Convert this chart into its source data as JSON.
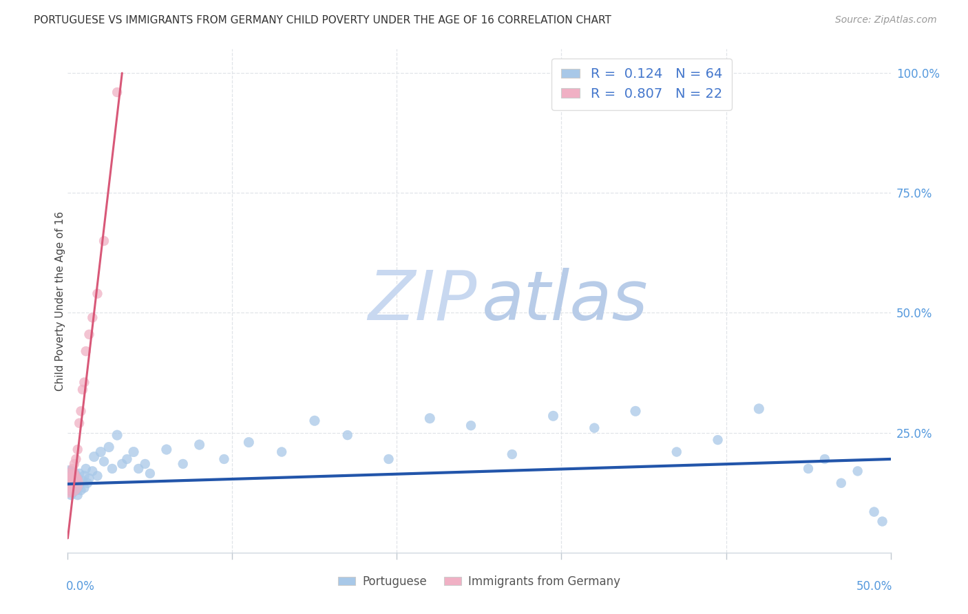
{
  "title": "PORTUGUESE VS IMMIGRANTS FROM GERMANY CHILD POVERTY UNDER THE AGE OF 16 CORRELATION CHART",
  "source": "Source: ZipAtlas.com",
  "ylabel": "Child Poverty Under the Age of 16",
  "legend_label_blue": "Portuguese",
  "legend_label_pink": "Immigrants from Germany",
  "R_blue": 0.124,
  "N_blue": 64,
  "R_pink": 0.807,
  "N_pink": 22,
  "blue_color": "#a8c8e8",
  "pink_color": "#f0b0c4",
  "blue_line_color": "#2255aa",
  "pink_line_color": "#d85878",
  "watermark_zip_color": "#c8d8f0",
  "watermark_atlas_color": "#b8cce8",
  "blue_points_x": [
    0.0005,
    0.001,
    0.001,
    0.0015,
    0.002,
    0.002,
    0.0025,
    0.003,
    0.003,
    0.003,
    0.004,
    0.004,
    0.005,
    0.005,
    0.005,
    0.006,
    0.006,
    0.007,
    0.007,
    0.008,
    0.009,
    0.01,
    0.01,
    0.011,
    0.012,
    0.013,
    0.015,
    0.016,
    0.018,
    0.02,
    0.022,
    0.025,
    0.027,
    0.03,
    0.033,
    0.036,
    0.04,
    0.043,
    0.047,
    0.05,
    0.06,
    0.07,
    0.08,
    0.095,
    0.11,
    0.13,
    0.15,
    0.17,
    0.195,
    0.22,
    0.245,
    0.27,
    0.295,
    0.32,
    0.345,
    0.37,
    0.395,
    0.42,
    0.45,
    0.46,
    0.47,
    0.48,
    0.49,
    0.495
  ],
  "blue_points_y": [
    0.155,
    0.145,
    0.13,
    0.16,
    0.12,
    0.17,
    0.14,
    0.15,
    0.125,
    0.165,
    0.135,
    0.155,
    0.13,
    0.16,
    0.145,
    0.12,
    0.155,
    0.14,
    0.165,
    0.13,
    0.15,
    0.16,
    0.135,
    0.175,
    0.145,
    0.155,
    0.17,
    0.2,
    0.16,
    0.21,
    0.19,
    0.22,
    0.175,
    0.245,
    0.185,
    0.195,
    0.21,
    0.175,
    0.185,
    0.165,
    0.215,
    0.185,
    0.225,
    0.195,
    0.23,
    0.21,
    0.275,
    0.245,
    0.195,
    0.28,
    0.265,
    0.205,
    0.285,
    0.26,
    0.295,
    0.21,
    0.235,
    0.3,
    0.175,
    0.195,
    0.145,
    0.17,
    0.085,
    0.065
  ],
  "blue_sizes": [
    700,
    120,
    100,
    100,
    100,
    100,
    100,
    110,
    100,
    100,
    100,
    100,
    110,
    100,
    100,
    100,
    100,
    100,
    100,
    100,
    100,
    110,
    100,
    100,
    100,
    100,
    100,
    110,
    100,
    110,
    100,
    110,
    100,
    110,
    100,
    100,
    110,
    100,
    100,
    100,
    110,
    100,
    110,
    100,
    110,
    100,
    110,
    100,
    100,
    110,
    100,
    100,
    110,
    100,
    110,
    100,
    100,
    110,
    100,
    100,
    100,
    100,
    100,
    100
  ],
  "pink_points_x": [
    0.0005,
    0.001,
    0.0015,
    0.002,
    0.002,
    0.003,
    0.003,
    0.004,
    0.004,
    0.005,
    0.005,
    0.006,
    0.007,
    0.008,
    0.009,
    0.01,
    0.011,
    0.013,
    0.015,
    0.018,
    0.022,
    0.03
  ],
  "pink_points_y": [
    0.145,
    0.13,
    0.155,
    0.135,
    0.16,
    0.175,
    0.145,
    0.165,
    0.185,
    0.195,
    0.155,
    0.215,
    0.27,
    0.295,
    0.34,
    0.355,
    0.42,
    0.455,
    0.49,
    0.54,
    0.65,
    0.96
  ],
  "pink_sizes": [
    900,
    100,
    100,
    100,
    100,
    100,
    100,
    100,
    100,
    100,
    100,
    100,
    100,
    100,
    100,
    100,
    100,
    100,
    100,
    100,
    100,
    100
  ],
  "blue_line_x": [
    0.0,
    0.5
  ],
  "blue_line_y": [
    0.143,
    0.195
  ],
  "pink_line_x": [
    0.0,
    0.033
  ],
  "pink_line_y": [
    0.03,
    1.0
  ],
  "xlim": [
    0.0,
    0.5
  ],
  "ylim": [
    0.0,
    1.05
  ],
  "background_color": "#ffffff",
  "grid_color": "#e0e4e8"
}
